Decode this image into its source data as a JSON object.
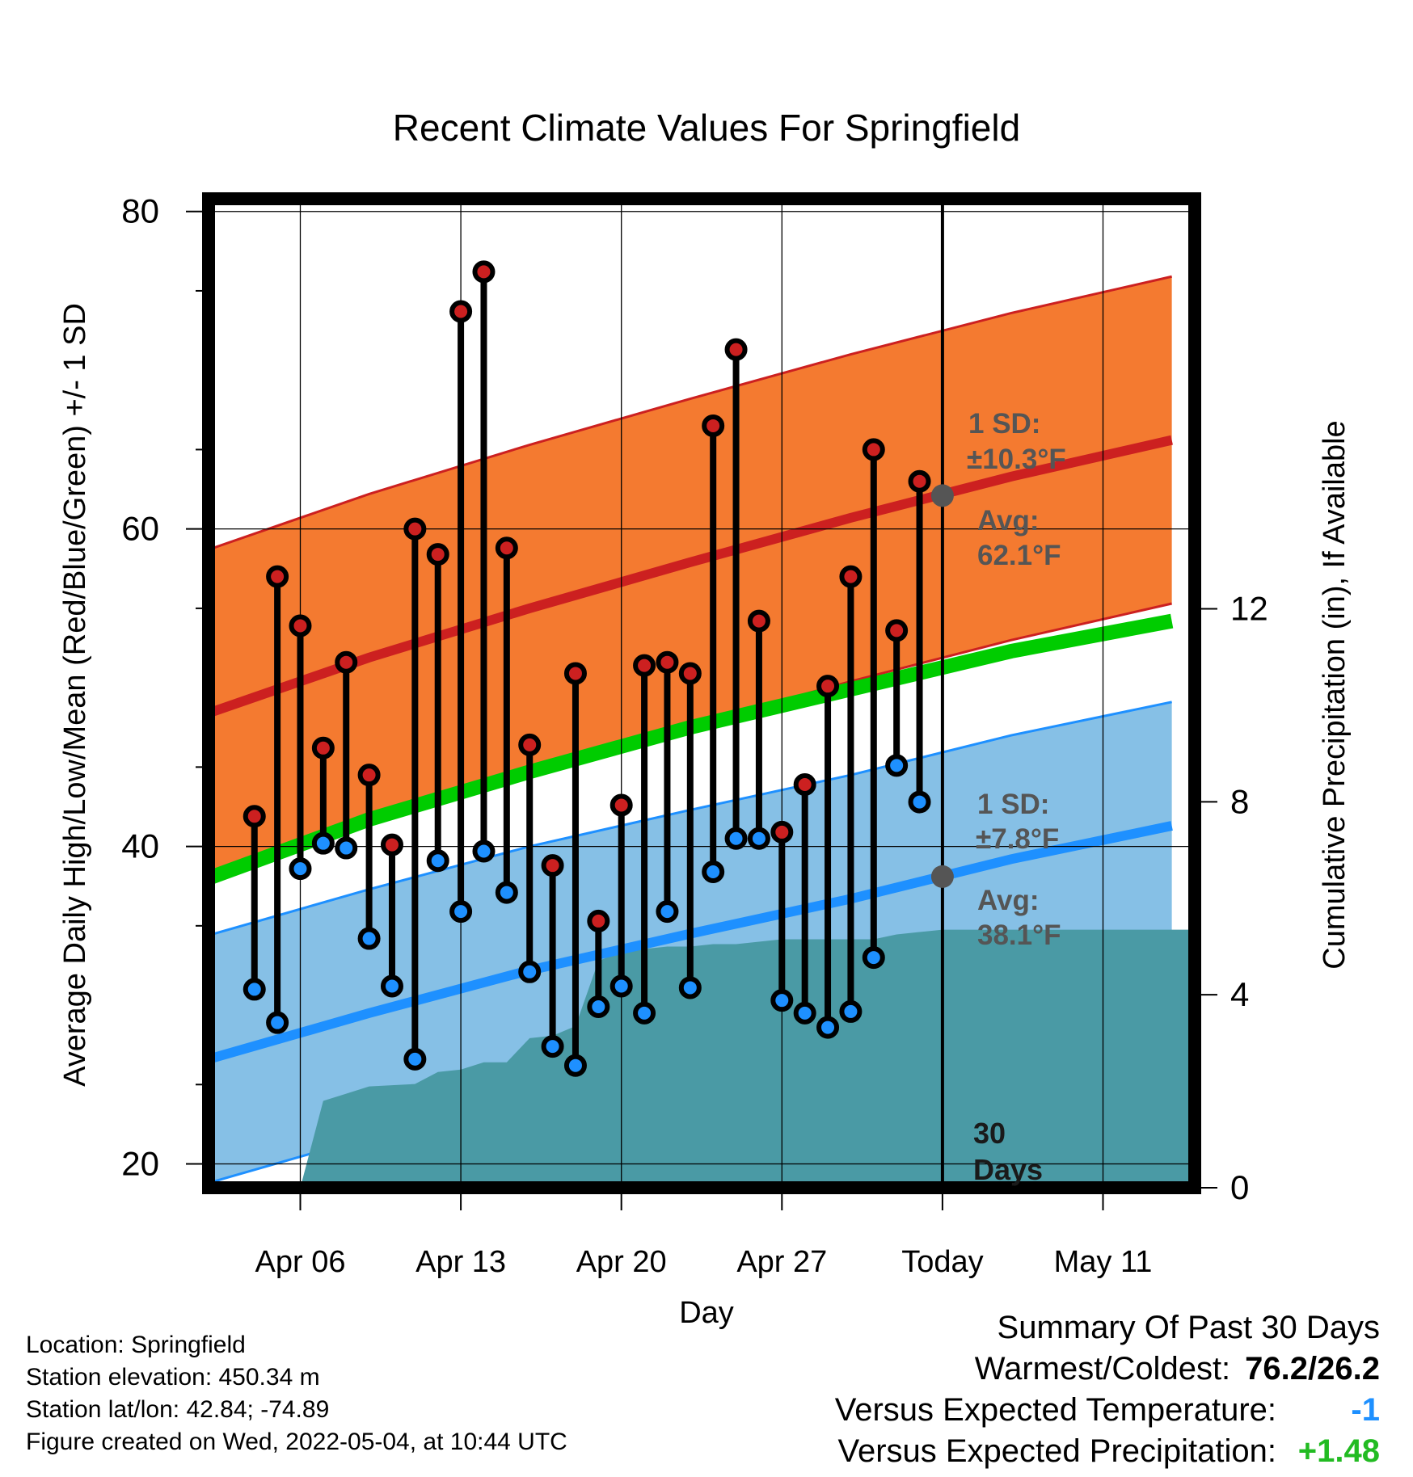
{
  "chart_data": {
    "type": "line",
    "title": "Recent Climate Values For Springfield",
    "xlabel": "Day",
    "ylabel": "Average Daily High/Low/Mean (Red/Blue/Green) +/- 1 SD",
    "y2label": "Cumulative Precipitation (in), If Available",
    "ylim": [
      18.5,
      80.8
    ],
    "y2lim": [
      0,
      20.5
    ],
    "yticks": [
      "20",
      "40",
      "60",
      "80"
    ],
    "y2ticks": [
      "0",
      "4",
      "8",
      "12"
    ],
    "xlim": [
      "2022-04-02",
      "2022-05-15"
    ],
    "xticks": [
      {
        "date": "2022-04-06",
        "label": "Apr 06"
      },
      {
        "date": "2022-04-13",
        "label": "Apr 13"
      },
      {
        "date": "2022-04-20",
        "label": "Apr 20"
      },
      {
        "date": "2022-04-27",
        "label": "Apr 27"
      },
      {
        "date": "2022-05-04",
        "label": "Today"
      },
      {
        "date": "2022-05-11",
        "label": "May 11"
      }
    ],
    "grid": true,
    "colors": {
      "high": "#cc2020",
      "high_band": "#f47a30",
      "low": "#1e90ff",
      "low_band": "#86c0e6",
      "mean": "#00cc00",
      "precip": "#4a9aa5",
      "annotation": "#555555"
    },
    "normals": {
      "dates": [
        "2022-04-02",
        "2022-04-09",
        "2022-04-16",
        "2022-04-23",
        "2022-04-30",
        "2022-05-07",
        "2022-05-14"
      ],
      "high_avg": [
        48.4,
        51.9,
        55.0,
        57.9,
        60.7,
        63.3,
        65.6
      ],
      "low_avg": [
        26.6,
        29.5,
        32.2,
        34.5,
        36.7,
        39.2,
        41.3
      ],
      "mean_avg": [
        38.0,
        41.7,
        44.7,
        47.5,
        49.9,
        52.3,
        54.2
      ],
      "high_sd": 10.3,
      "low_sd": 7.8
    },
    "observations": {
      "dates": [
        "2022-04-04",
        "2022-04-05",
        "2022-04-06",
        "2022-04-07",
        "2022-04-08",
        "2022-04-09",
        "2022-04-10",
        "2022-04-11",
        "2022-04-12",
        "2022-04-13",
        "2022-04-14",
        "2022-04-15",
        "2022-04-16",
        "2022-04-17",
        "2022-04-18",
        "2022-04-19",
        "2022-04-20",
        "2022-04-21",
        "2022-04-22",
        "2022-04-23",
        "2022-04-24",
        "2022-04-25",
        "2022-04-26",
        "2022-04-27",
        "2022-04-28",
        "2022-04-29",
        "2022-04-30",
        "2022-05-01",
        "2022-05-02",
        "2022-05-03"
      ],
      "high": [
        41.9,
        57.0,
        53.9,
        46.2,
        51.6,
        44.5,
        40.1,
        60.0,
        58.4,
        73.7,
        76.2,
        58.8,
        46.4,
        38.8,
        50.9,
        35.3,
        42.6,
        51.4,
        51.6,
        50.9,
        66.5,
        71.3,
        54.2,
        40.9,
        43.9,
        50.1,
        57.0,
        65.0,
        53.6,
        63.0
      ],
      "low": [
        31.0,
        28.9,
        38.6,
        40.2,
        39.9,
        34.2,
        31.2,
        26.6,
        39.1,
        35.9,
        39.7,
        37.1,
        32.1,
        27.4,
        26.2,
        29.9,
        31.2,
        29.5,
        35.9,
        31.1,
        38.4,
        40.5,
        40.5,
        30.3,
        29.5,
        28.6,
        29.6,
        33.0,
        45.1,
        42.8
      ]
    },
    "precipitation": {
      "dates": [
        "2022-04-02",
        "2022-04-06",
        "2022-04-07",
        "2022-04-08",
        "2022-04-09",
        "2022-04-11",
        "2022-04-12",
        "2022-04-13",
        "2022-04-14",
        "2022-04-15",
        "2022-04-16",
        "2022-04-17",
        "2022-04-18",
        "2022-04-19",
        "2022-04-20",
        "2022-04-21",
        "2022-04-22",
        "2022-04-23",
        "2022-04-24",
        "2022-04-25",
        "2022-04-26",
        "2022-04-27",
        "2022-04-28",
        "2022-04-29",
        "2022-04-30",
        "2022-05-01",
        "2022-05-02",
        "2022-05-03",
        "2022-05-04",
        "2022-05-15"
      ],
      "cumulative": [
        0,
        0,
        1.8,
        1.95,
        2.1,
        2.15,
        2.4,
        2.45,
        2.6,
        2.6,
        3.1,
        3.15,
        3.35,
        4.7,
        4.9,
        4.95,
        5.0,
        5.0,
        5.05,
        5.05,
        5.1,
        5.15,
        5.15,
        5.15,
        5.15,
        5.15,
        5.25,
        5.3,
        5.35,
        5.35
      ]
    },
    "annotations": {
      "high_sd_label": "1 SD:",
      "high_sd_value": "±10.3°F",
      "high_avg_label": "Avg:",
      "high_avg_value": "62.1°F",
      "high_avg_today": 62.1,
      "low_sd_label": "1 SD:",
      "low_sd_value": "±7.8°F",
      "low_avg_label": "Avg:",
      "low_avg_value": "38.1°F",
      "low_avg_today": 38.1,
      "period_number": "30",
      "period_unit": "Days",
      "today_date": "2022-05-04"
    }
  },
  "footer": {
    "location": "Location: Springfield",
    "elevation": "Station elevation: 450.34 m",
    "latlon": "Station lat/lon: 42.84; -74.89",
    "created": "Figure created on Wed, 2022-05-04, at 10:44 UTC"
  },
  "summary": {
    "heading": "Summary Of Past 30 Days",
    "warmest_coldest_label": "Warmest/Coldest:",
    "warmest_coldest_value": "76.2/26.2",
    "temp_label": "Versus Expected Temperature:",
    "temp_value": "-1",
    "temp_color": "#1e90ff",
    "precip_label": "Versus Expected Precipitation:",
    "precip_value": "+1.48",
    "precip_color": "#22bb22"
  }
}
